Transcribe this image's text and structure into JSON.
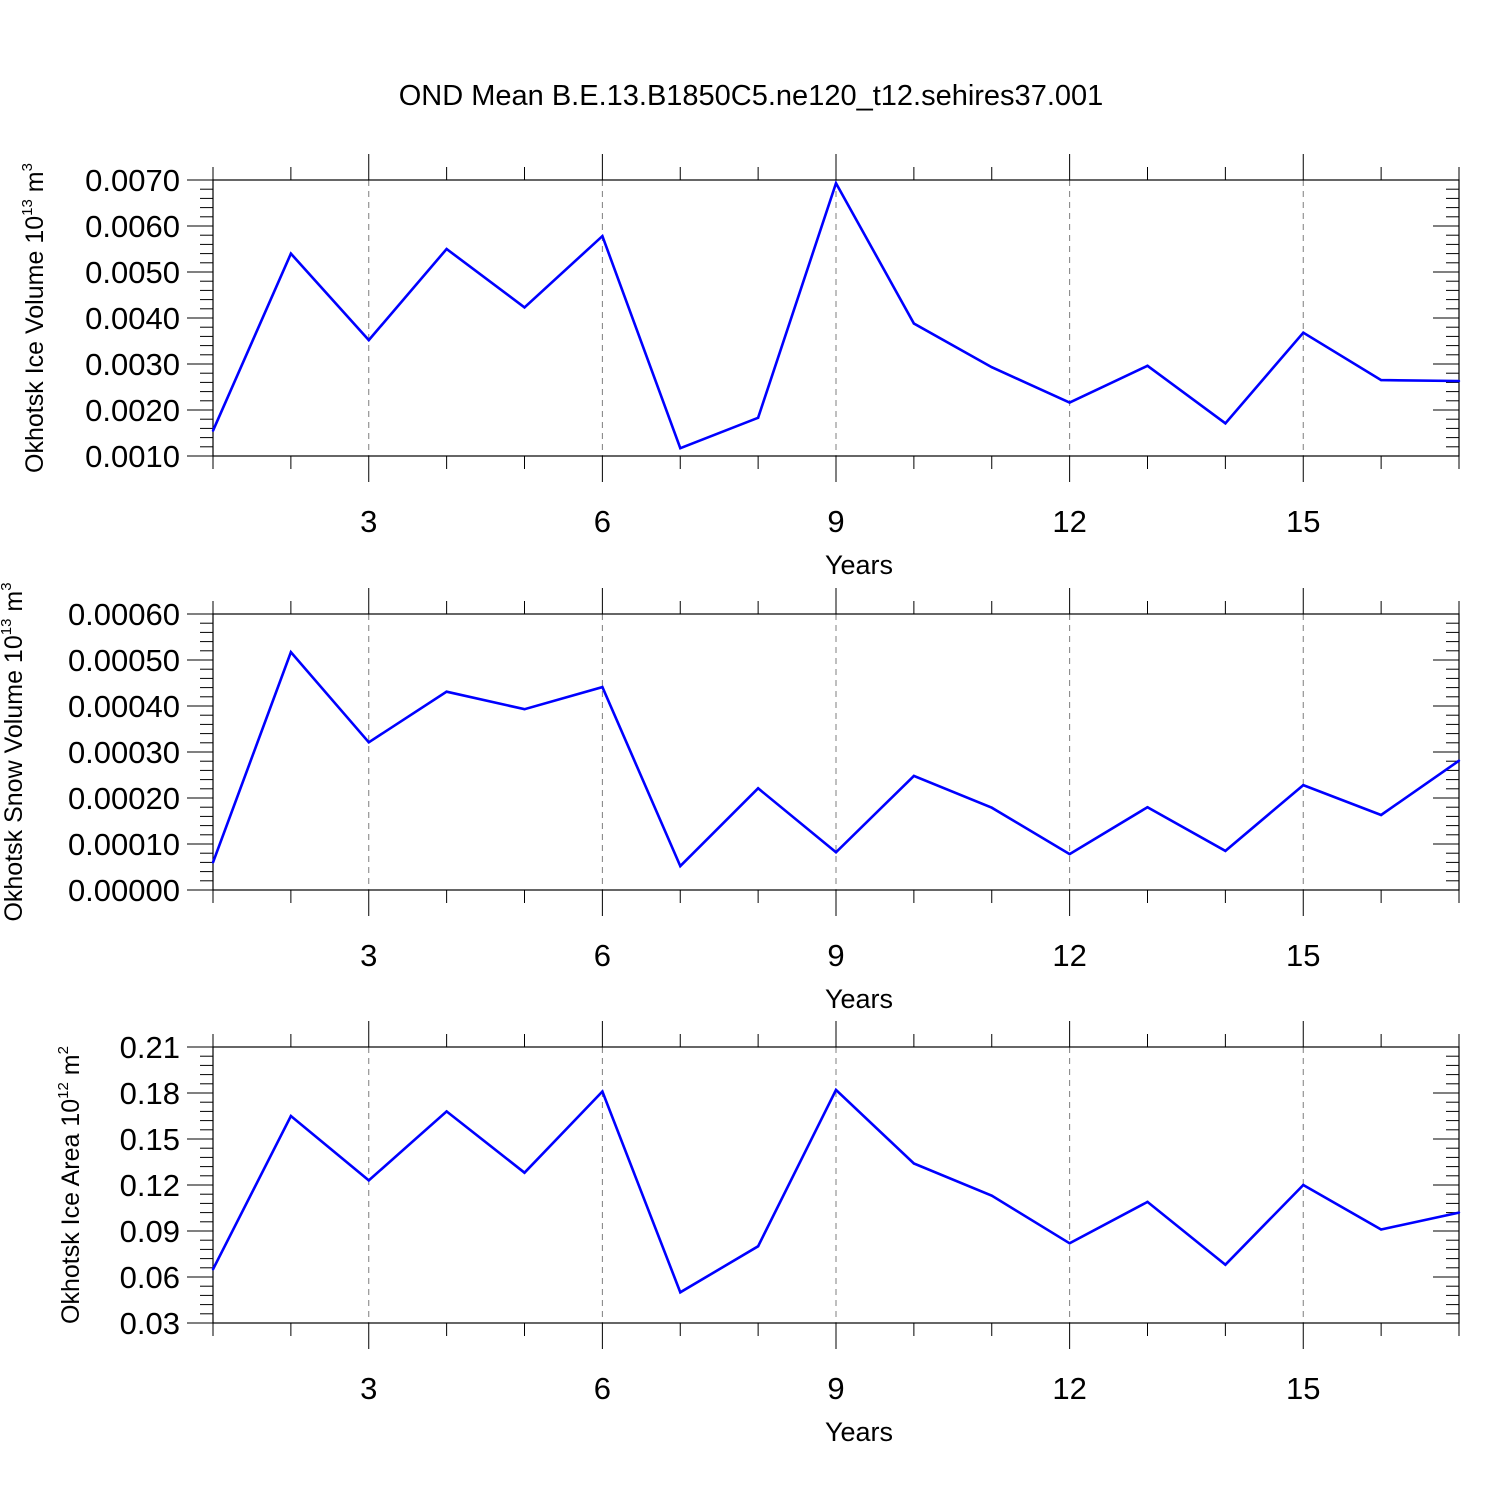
{
  "title": "OND Mean B.E.13.B1850C5.ne120_t12.sehires37.001",
  "colors": {
    "line": "#0000ff",
    "axis": "#000000",
    "grid": "#7f7f7f"
  },
  "chart_data": [
    {
      "type": "line",
      "xlabel": "Years",
      "ylabel": {
        "text": "Okhotsk Ice Volume 10",
        "exp": "13",
        "unit": "m",
        "unit_exp": "3"
      },
      "xlim": [
        1,
        17
      ],
      "ylim": [
        0.001,
        0.007
      ],
      "xticks": [
        3,
        6,
        9,
        12,
        15
      ],
      "xtick_labels": [
        "3",
        "6",
        "9",
        "12",
        "15"
      ],
      "yticks": [
        0.001,
        0.002,
        0.003,
        0.004,
        0.005,
        0.006,
        0.007
      ],
      "ytick_labels": [
        "0.0010",
        "0.0020",
        "0.0030",
        "0.0040",
        "0.0050",
        "0.0060",
        "0.0070"
      ],
      "grid": "vertical dashed at major x ticks",
      "x": [
        1,
        2,
        3,
        4,
        5,
        6,
        7,
        8,
        9,
        10,
        11,
        12,
        13,
        14,
        15,
        16,
        17
      ],
      "values": [
        0.00155,
        0.0054,
        0.00352,
        0.0055,
        0.00423,
        0.00578,
        0.00117,
        0.00183,
        0.00693,
        0.00388,
        0.00293,
        0.00216,
        0.00296,
        0.00171,
        0.00368,
        0.00265,
        0.00263
      ]
    },
    {
      "type": "line",
      "xlabel": "Years",
      "ylabel": {
        "text": "Okhotsk Snow Volume 10",
        "exp": "13",
        "unit": "m",
        "unit_exp": "3"
      },
      "xlim": [
        1,
        17
      ],
      "ylim": [
        0.0,
        0.0006
      ],
      "xticks": [
        3,
        6,
        9,
        12,
        15
      ],
      "xtick_labels": [
        "3",
        "6",
        "9",
        "12",
        "15"
      ],
      "yticks": [
        0.0,
        0.0001,
        0.0002,
        0.0003,
        0.0004,
        0.0005,
        0.0006
      ],
      "ytick_labels": [
        "0.00000",
        "0.00010",
        "0.00020",
        "0.00030",
        "0.00040",
        "0.00050",
        "0.00060"
      ],
      "grid": "vertical dashed at major x ticks",
      "x": [
        1,
        2,
        3,
        4,
        5,
        6,
        7,
        8,
        9,
        10,
        11,
        12,
        13,
        14,
        15,
        16,
        17
      ],
      "values": [
        6e-05,
        0.000517,
        0.000321,
        0.000431,
        0.000393,
        0.000441,
        5.2e-05,
        0.000221,
        8.2e-05,
        0.000248,
        0.000179,
        7.8e-05,
        0.00018,
        8.5e-05,
        0.000228,
        0.000163,
        0.000281
      ]
    },
    {
      "type": "line",
      "xlabel": "Years",
      "ylabel": {
        "text": "Okhotsk Ice Area 10",
        "exp": "12",
        "unit": "m",
        "unit_exp": "2"
      },
      "xlim": [
        1,
        17
      ],
      "ylim": [
        0.03,
        0.21
      ],
      "xticks": [
        3,
        6,
        9,
        12,
        15
      ],
      "xtick_labels": [
        "3",
        "6",
        "9",
        "12",
        "15"
      ],
      "yticks": [
        0.03,
        0.06,
        0.09,
        0.12,
        0.15,
        0.18,
        0.21
      ],
      "ytick_labels": [
        "0.03",
        "0.06",
        "0.09",
        "0.12",
        "0.15",
        "0.18",
        "0.21"
      ],
      "grid": "vertical dashed at major x ticks",
      "x": [
        1,
        2,
        3,
        4,
        5,
        6,
        7,
        8,
        9,
        10,
        11,
        12,
        13,
        14,
        15,
        16,
        17
      ],
      "values": [
        0.065,
        0.165,
        0.123,
        0.168,
        0.128,
        0.181,
        0.05,
        0.08,
        0.182,
        0.134,
        0.113,
        0.082,
        0.109,
        0.068,
        0.12,
        0.091,
        0.102
      ]
    }
  ]
}
